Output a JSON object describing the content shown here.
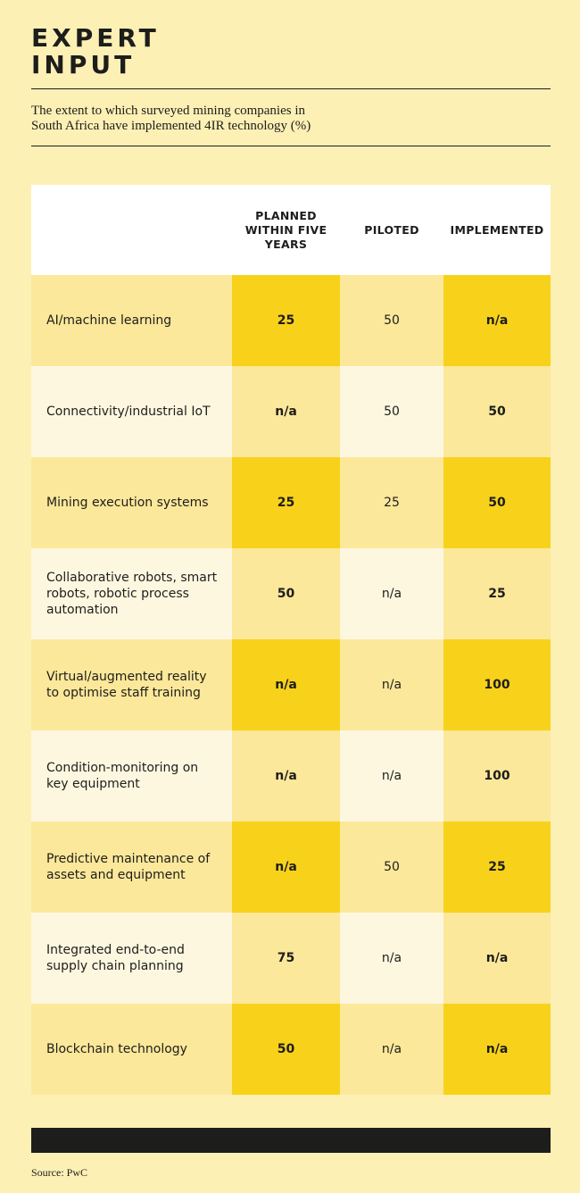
{
  "title_line1": "EXPERT",
  "title_line2": "INPUT",
  "subtitle_line1": "The extent to which surveyed mining companies in",
  "subtitle_line2": "South Africa have implemented 4IR technology (%)",
  "source": "Source: PwC",
  "colors": {
    "background": "#fdf0b5",
    "strong_yellow": "#f8d21a",
    "mid_yellow": "#fce89a",
    "light_cream": "#fef7e0",
    "white": "#ffffff",
    "dark": "#1d1d1b"
  },
  "chart_data": {
    "type": "table",
    "columns": [
      "PLANNED WITHIN FIVE YEARS",
      "PILOTED",
      "IMPLEMENTED"
    ],
    "rows": [
      {
        "label": "AI/machine learning",
        "planned": "25",
        "piloted": "50",
        "implemented": "n/a"
      },
      {
        "label": "Connectivity/industrial IoT",
        "planned": "n/a",
        "piloted": "50",
        "implemented": "50"
      },
      {
        "label": "Mining execution systems",
        "planned": "25",
        "piloted": "25",
        "implemented": "50"
      },
      {
        "label": "Collaborative robots, smart robots, robotic process automation",
        "planned": "50",
        "piloted": "n/a",
        "implemented": "25"
      },
      {
        "label": "Virtual/augmented reality to optimise staff training",
        "planned": "n/a",
        "piloted": "n/a",
        "implemented": "100"
      },
      {
        "label": "Condition-monitoring on key equipment",
        "planned": "n/a",
        "piloted": "n/a",
        "implemented": "100"
      },
      {
        "label": "Predictive maintenance of assets and equipment",
        "planned": "n/a",
        "piloted": "50",
        "implemented": "25"
      },
      {
        "label": "Integrated end-to-end supply chain planning",
        "planned": "75",
        "piloted": "n/a",
        "implemented": "n/a"
      },
      {
        "label": "Blockchain technology",
        "planned": "50",
        "piloted": "n/a",
        "implemented": "n/a"
      }
    ]
  }
}
